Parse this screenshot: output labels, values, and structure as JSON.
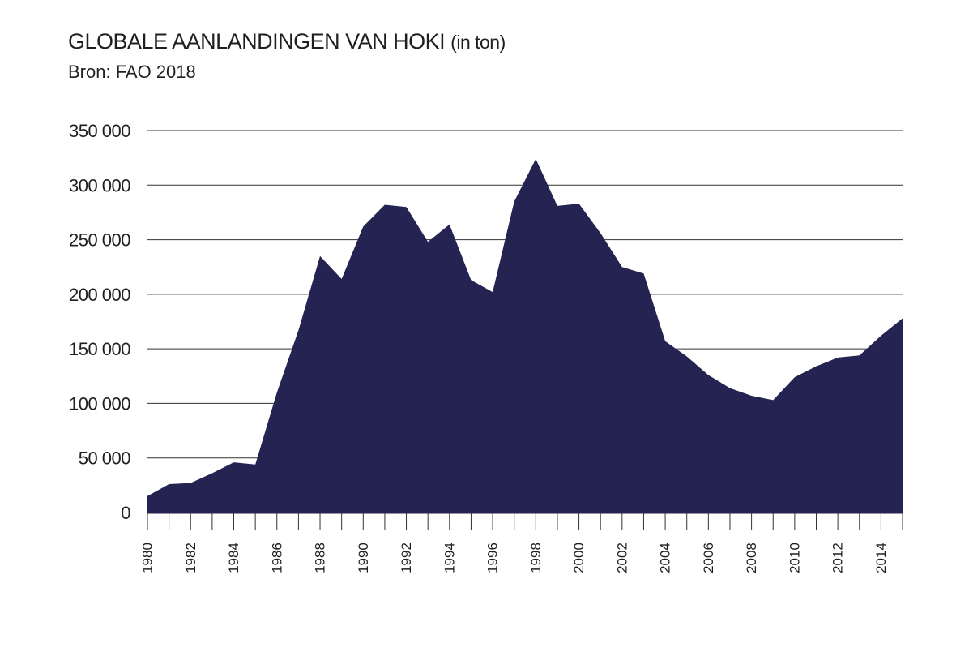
{
  "title": "GLOBALE AANLANDINGEN VAN HOKI",
  "title_unit": "(in ton)",
  "subtitle": "Bron: FAO 2018",
  "colors": {
    "area": "#252352",
    "grid": "#333333",
    "text": "#1f1f1f"
  },
  "chart_data": {
    "type": "area",
    "title": "GLOBALE AANLANDINGEN VAN HOKI (in ton)",
    "subtitle": "Bron: FAO 2018",
    "xlabel": "",
    "ylabel": "",
    "ylim": [
      0,
      350000
    ],
    "xlim": [
      1980,
      2015
    ],
    "grid": true,
    "y_ticks": [
      0,
      50000,
      100000,
      150000,
      200000,
      250000,
      300000,
      350000
    ],
    "y_tick_labels": [
      "0",
      "50 000",
      "100 000",
      "150 000",
      "200 000",
      "250 000",
      "300 000",
      "350 000"
    ],
    "x_tick_labels": [
      "1980",
      "1982",
      "1984",
      "1986",
      "1988",
      "1990",
      "1992",
      "1994",
      "1996",
      "1998",
      "2000",
      "2002",
      "2004",
      "2006",
      "2008",
      "2010",
      "2012",
      "2014"
    ],
    "x": [
      1980,
      1981,
      1982,
      1983,
      1984,
      1985,
      1986,
      1987,
      1988,
      1989,
      1990,
      1991,
      1992,
      1993,
      1994,
      1995,
      1996,
      1997,
      1998,
      1999,
      2000,
      2001,
      2002,
      2003,
      2004,
      2005,
      2006,
      2007,
      2008,
      2009,
      2010,
      2011,
      2012,
      2013,
      2014,
      2015
    ],
    "values": [
      15000,
      26000,
      27000,
      36000,
      46000,
      44000,
      110000,
      167000,
      235000,
      214000,
      262000,
      282000,
      280000,
      248000,
      264000,
      213000,
      202000,
      285000,
      324000,
      281000,
      283000,
      256000,
      225000,
      219000,
      157000,
      143000,
      126000,
      114000,
      107000,
      103000,
      124000,
      134000,
      142000,
      144000,
      162000,
      178000
    ]
  }
}
